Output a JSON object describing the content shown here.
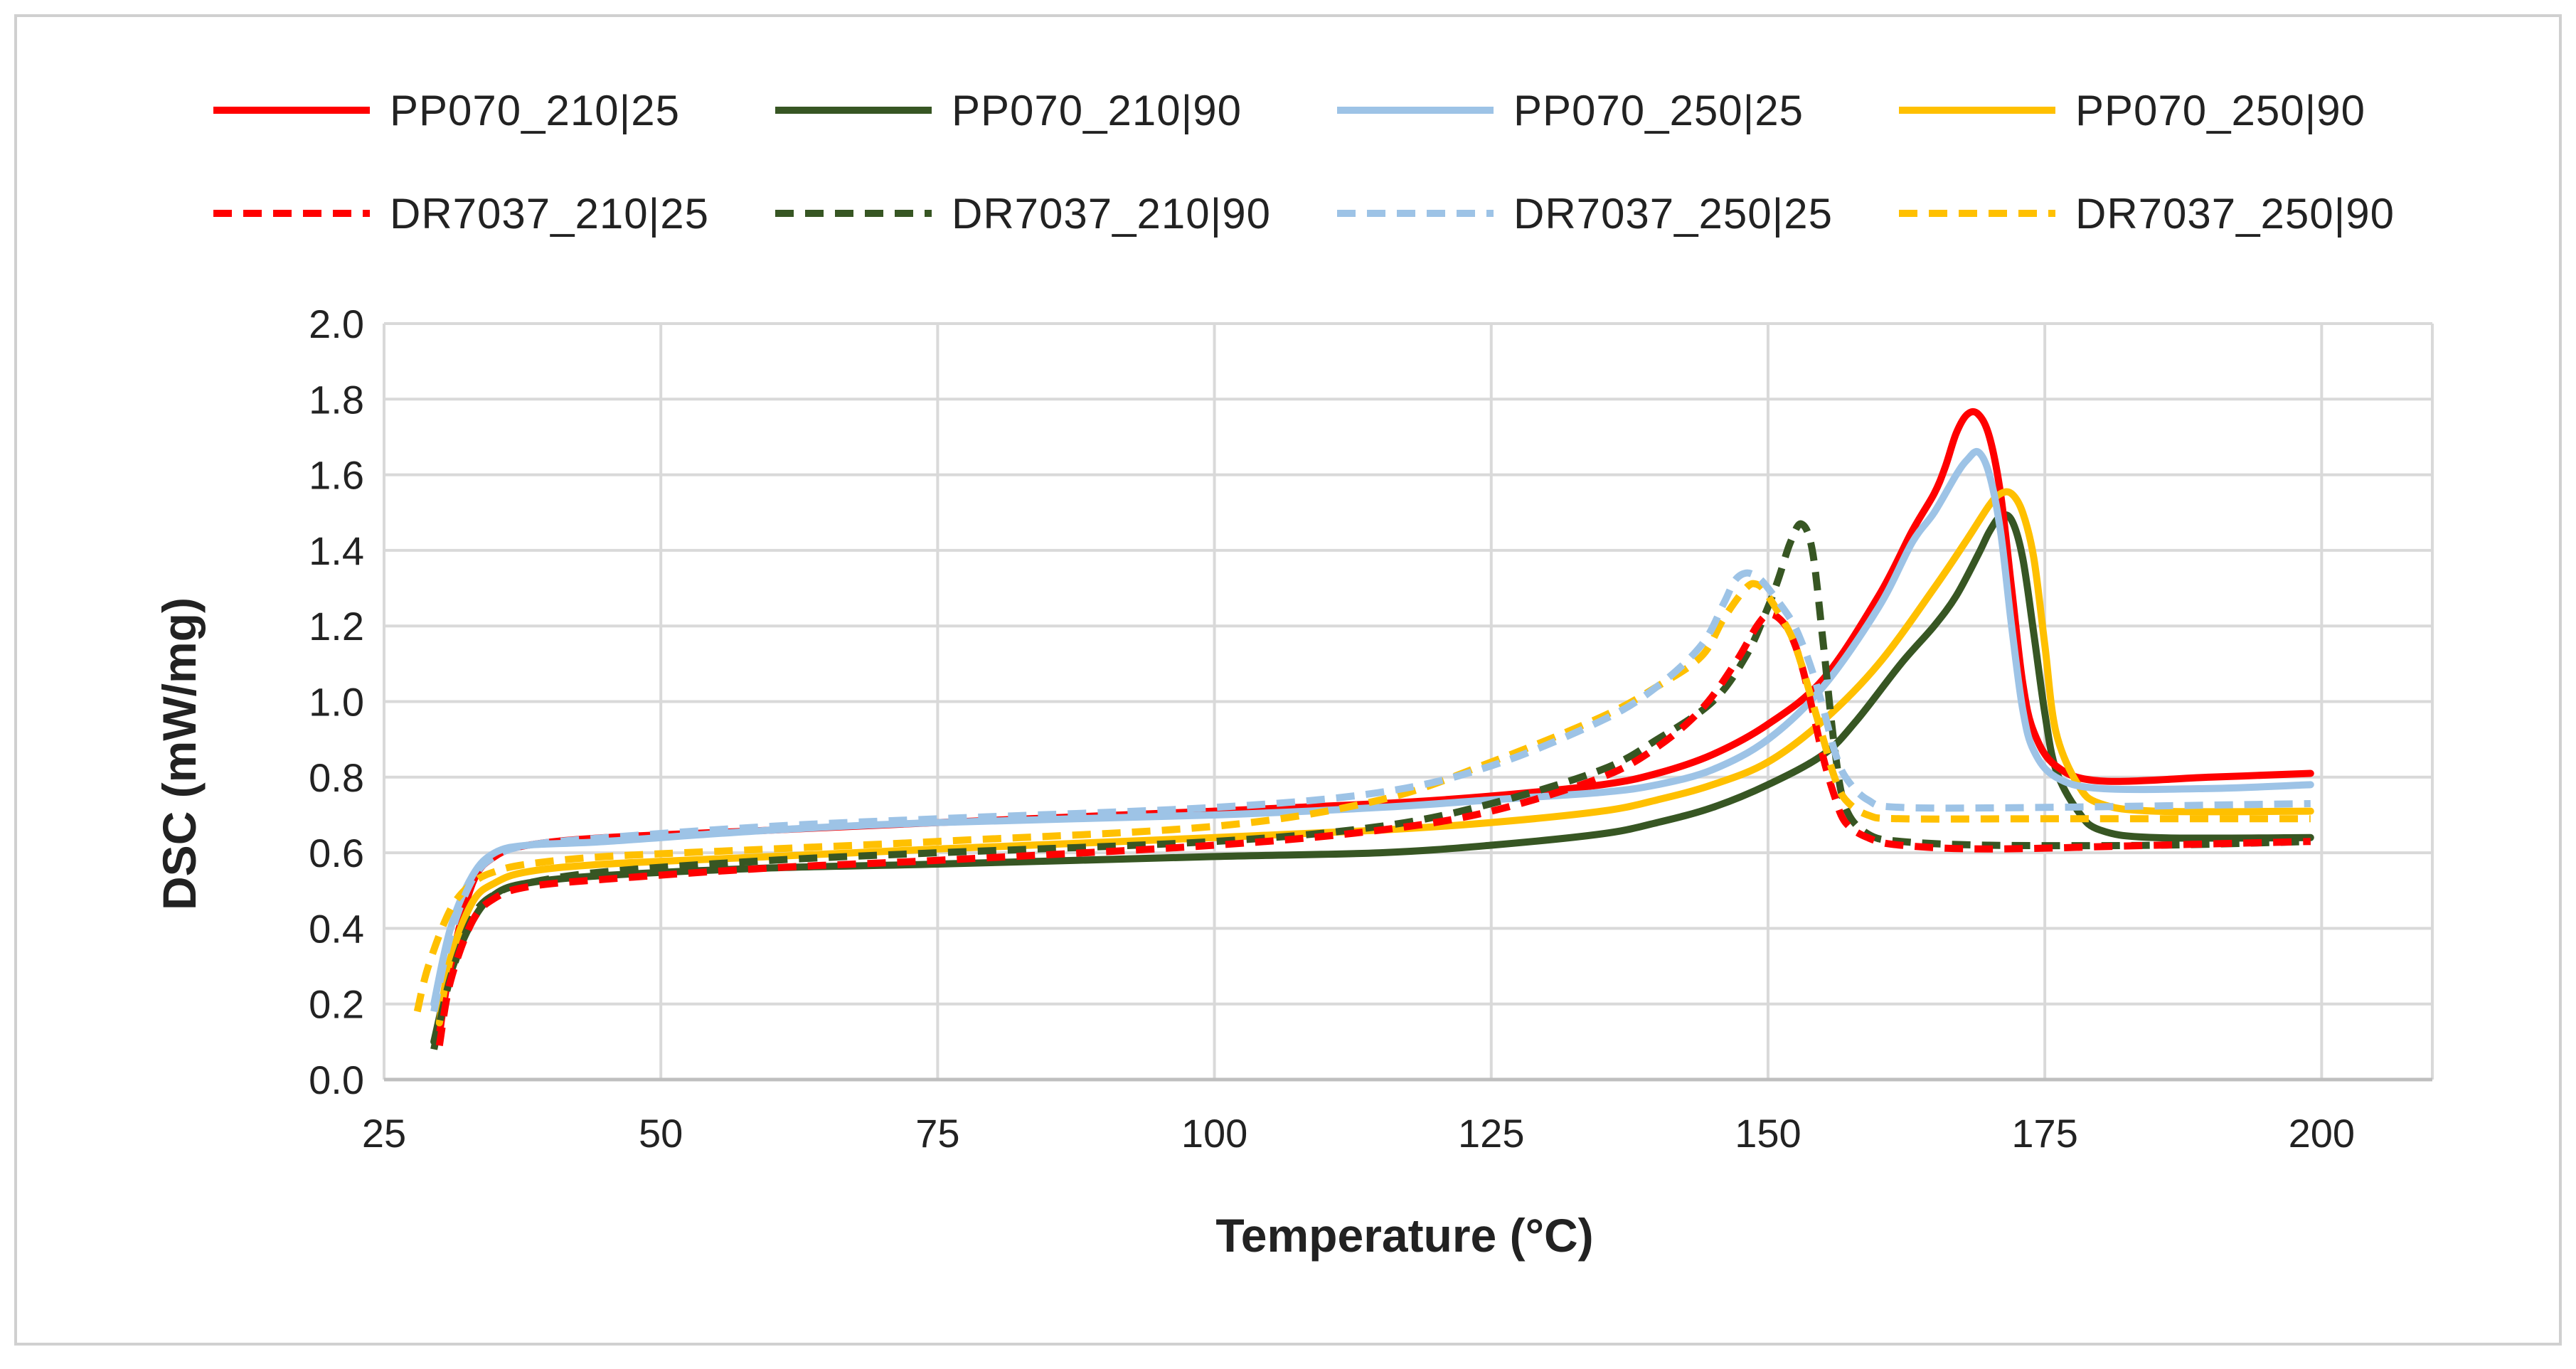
{
  "chart_data": {
    "type": "line",
    "title": "",
    "xlabel": "Temperature (°C)",
    "ylabel": "DSC  (mW/mg)",
    "xlim": [
      25,
      210
    ],
    "ylim": [
      0,
      2.0
    ],
    "x_ticks": [
      "25",
      "50",
      "75",
      "100",
      "125",
      "150",
      "175",
      "200"
    ],
    "y_ticks": [
      "0.0",
      "0.2",
      "0.4",
      "0.6",
      "0.8",
      "1.0",
      "1.2",
      "1.4",
      "1.6",
      "1.8",
      "2.0"
    ],
    "grid": true,
    "legend_position": "top",
    "series": [
      {
        "name": "PP070_210|25",
        "color": "#ff0000",
        "dash": "solid",
        "points": [
          [
            30,
            0.12
          ],
          [
            31,
            0.3
          ],
          [
            33,
            0.52
          ],
          [
            35,
            0.59
          ],
          [
            38,
            0.62
          ],
          [
            45,
            0.64
          ],
          [
            60,
            0.66
          ],
          [
            75,
            0.68
          ],
          [
            100,
            0.71
          ],
          [
            115,
            0.73
          ],
          [
            125,
            0.75
          ],
          [
            135,
            0.78
          ],
          [
            140,
            0.81
          ],
          [
            145,
            0.86
          ],
          [
            150,
            0.94
          ],
          [
            155,
            1.06
          ],
          [
            160,
            1.28
          ],
          [
            163,
            1.45
          ],
          [
            165,
            1.55
          ],
          [
            166,
            1.62
          ],
          [
            167,
            1.71
          ],
          [
            168,
            1.76
          ],
          [
            169,
            1.76
          ],
          [
            170,
            1.7
          ],
          [
            171,
            1.55
          ],
          [
            172,
            1.3
          ],
          [
            173,
            1.05
          ],
          [
            174,
            0.92
          ],
          [
            176,
            0.83
          ],
          [
            180,
            0.79
          ],
          [
            190,
            0.8
          ],
          [
            199,
            0.81
          ]
        ]
      },
      {
        "name": "PP070_210|90",
        "color": "#375623",
        "dash": "solid",
        "points": [
          [
            29.5,
            0.1
          ],
          [
            31,
            0.28
          ],
          [
            33,
            0.42
          ],
          [
            35,
            0.49
          ],
          [
            38,
            0.52
          ],
          [
            45,
            0.54
          ],
          [
            60,
            0.56
          ],
          [
            75,
            0.57
          ],
          [
            100,
            0.59
          ],
          [
            115,
            0.6
          ],
          [
            125,
            0.62
          ],
          [
            135,
            0.65
          ],
          [
            140,
            0.68
          ],
          [
            145,
            0.72
          ],
          [
            150,
            0.78
          ],
          [
            155,
            0.86
          ],
          [
            158,
            0.95
          ],
          [
            162,
            1.1
          ],
          [
            165,
            1.2
          ],
          [
            167,
            1.28
          ],
          [
            169,
            1.39
          ],
          [
            170,
            1.45
          ],
          [
            171,
            1.49
          ],
          [
            172,
            1.48
          ],
          [
            173,
            1.38
          ],
          [
            174,
            1.18
          ],
          [
            175,
            0.97
          ],
          [
            176,
            0.82
          ],
          [
            178,
            0.71
          ],
          [
            180,
            0.66
          ],
          [
            185,
            0.64
          ],
          [
            199,
            0.64
          ]
        ]
      },
      {
        "name": "PP070_250|25",
        "color": "#9dc3e6",
        "dash": "solid",
        "points": [
          [
            29.5,
            0.2
          ],
          [
            31,
            0.4
          ],
          [
            33,
            0.54
          ],
          [
            35,
            0.6
          ],
          [
            38,
            0.62
          ],
          [
            45,
            0.63
          ],
          [
            60,
            0.66
          ],
          [
            75,
            0.68
          ],
          [
            100,
            0.7
          ],
          [
            115,
            0.72
          ],
          [
            125,
            0.74
          ],
          [
            135,
            0.76
          ],
          [
            140,
            0.78
          ],
          [
            145,
            0.82
          ],
          [
            150,
            0.9
          ],
          [
            155,
            1.04
          ],
          [
            160,
            1.25
          ],
          [
            163,
            1.42
          ],
          [
            165,
            1.5
          ],
          [
            167,
            1.6
          ],
          [
            168,
            1.64
          ],
          [
            169,
            1.66
          ],
          [
            170,
            1.6
          ],
          [
            171,
            1.45
          ],
          [
            172,
            1.2
          ],
          [
            173,
            0.98
          ],
          [
            174,
            0.87
          ],
          [
            176,
            0.8
          ],
          [
            180,
            0.77
          ],
          [
            190,
            0.77
          ],
          [
            199,
            0.78
          ]
        ]
      },
      {
        "name": "PP070_250|90",
        "color": "#ffc000",
        "dash": "solid",
        "points": [
          [
            30,
            0.15
          ],
          [
            31,
            0.32
          ],
          [
            33,
            0.47
          ],
          [
            35,
            0.52
          ],
          [
            38,
            0.55
          ],
          [
            45,
            0.57
          ],
          [
            60,
            0.59
          ],
          [
            75,
            0.61
          ],
          [
            100,
            0.64
          ],
          [
            115,
            0.66
          ],
          [
            125,
            0.68
          ],
          [
            135,
            0.71
          ],
          [
            140,
            0.74
          ],
          [
            145,
            0.78
          ],
          [
            150,
            0.84
          ],
          [
            155,
            0.95
          ],
          [
            160,
            1.1
          ],
          [
            165,
            1.3
          ],
          [
            168,
            1.43
          ],
          [
            170,
            1.52
          ],
          [
            171,
            1.55
          ],
          [
            172,
            1.55
          ],
          [
            173,
            1.5
          ],
          [
            174,
            1.38
          ],
          [
            175,
            1.15
          ],
          [
            176,
            0.92
          ],
          [
            178,
            0.78
          ],
          [
            180,
            0.73
          ],
          [
            185,
            0.71
          ],
          [
            199,
            0.71
          ]
        ]
      },
      {
        "name": "DR7037_210|25",
        "color": "#ff0000",
        "dash": "dashed",
        "points": [
          [
            30,
            0.09
          ],
          [
            31,
            0.26
          ],
          [
            33,
            0.42
          ],
          [
            35,
            0.48
          ],
          [
            38,
            0.51
          ],
          [
            45,
            0.53
          ],
          [
            60,
            0.56
          ],
          [
            75,
            0.58
          ],
          [
            100,
            0.62
          ],
          [
            115,
            0.66
          ],
          [
            125,
            0.71
          ],
          [
            135,
            0.8
          ],
          [
            140,
            0.88
          ],
          [
            144,
            0.98
          ],
          [
            147,
            1.1
          ],
          [
            149,
            1.2
          ],
          [
            150,
            1.23
          ],
          [
            151,
            1.22
          ],
          [
            152,
            1.18
          ],
          [
            153,
            1.1
          ],
          [
            154,
            0.98
          ],
          [
            155,
            0.85
          ],
          [
            156,
            0.75
          ],
          [
            157,
            0.68
          ],
          [
            159,
            0.64
          ],
          [
            162,
            0.62
          ],
          [
            170,
            0.61
          ],
          [
            185,
            0.62
          ],
          [
            199,
            0.63
          ]
        ]
      },
      {
        "name": "DR7037_210|90",
        "color": "#375623",
        "dash": "dashed",
        "points": [
          [
            29.5,
            0.08
          ],
          [
            31,
            0.27
          ],
          [
            33,
            0.43
          ],
          [
            35,
            0.49
          ],
          [
            38,
            0.52
          ],
          [
            45,
            0.55
          ],
          [
            60,
            0.58
          ],
          [
            75,
            0.6
          ],
          [
            100,
            0.63
          ],
          [
            115,
            0.67
          ],
          [
            125,
            0.73
          ],
          [
            135,
            0.82
          ],
          [
            140,
            0.9
          ],
          [
            145,
            1.0
          ],
          [
            148,
            1.12
          ],
          [
            150,
            1.25
          ],
          [
            151,
            1.33
          ],
          [
            152,
            1.42
          ],
          [
            153,
            1.47
          ],
          [
            154,
            1.4
          ],
          [
            155,
            1.15
          ],
          [
            156,
            0.88
          ],
          [
            157,
            0.72
          ],
          [
            159,
            0.65
          ],
          [
            162,
            0.63
          ],
          [
            170,
            0.62
          ],
          [
            185,
            0.62
          ],
          [
            199,
            0.63
          ]
        ]
      },
      {
        "name": "DR7037_250|25",
        "color": "#9dc3e6",
        "dash": "dashed",
        "points": [
          [
            29.5,
            0.18
          ],
          [
            31,
            0.38
          ],
          [
            33,
            0.53
          ],
          [
            35,
            0.59
          ],
          [
            38,
            0.62
          ],
          [
            45,
            0.64
          ],
          [
            60,
            0.67
          ],
          [
            75,
            0.69
          ],
          [
            100,
            0.72
          ],
          [
            115,
            0.76
          ],
          [
            125,
            0.83
          ],
          [
            135,
            0.95
          ],
          [
            140,
            1.04
          ],
          [
            144,
            1.15
          ],
          [
            146,
            1.26
          ],
          [
            147,
            1.32
          ],
          [
            148,
            1.34
          ],
          [
            149,
            1.33
          ],
          [
            150,
            1.3
          ],
          [
            152,
            1.22
          ],
          [
            153,
            1.16
          ],
          [
            154,
            1.08
          ],
          [
            155,
            0.98
          ],
          [
            156,
            0.87
          ],
          [
            157,
            0.8
          ],
          [
            159,
            0.74
          ],
          [
            162,
            0.72
          ],
          [
            175,
            0.72
          ],
          [
            199,
            0.73
          ]
        ]
      },
      {
        "name": "DR7037_250|90",
        "color": "#ffc000",
        "dash": "dashed",
        "points": [
          [
            28,
            0.18
          ],
          [
            29,
            0.3
          ],
          [
            31,
            0.45
          ],
          [
            33,
            0.52
          ],
          [
            35,
            0.55
          ],
          [
            38,
            0.57
          ],
          [
            45,
            0.59
          ],
          [
            60,
            0.61
          ],
          [
            75,
            0.63
          ],
          [
            100,
            0.67
          ],
          [
            115,
            0.74
          ],
          [
            125,
            0.84
          ],
          [
            135,
            0.96
          ],
          [
            140,
            1.04
          ],
          [
            144,
            1.12
          ],
          [
            146,
            1.22
          ],
          [
            148,
            1.3
          ],
          [
            149,
            1.31
          ],
          [
            150,
            1.28
          ],
          [
            152,
            1.18
          ],
          [
            153,
            1.1
          ],
          [
            154,
            1.0
          ],
          [
            155,
            0.9
          ],
          [
            156,
            0.8
          ],
          [
            157,
            0.74
          ],
          [
            159,
            0.7
          ],
          [
            162,
            0.69
          ],
          [
            175,
            0.69
          ],
          [
            199,
            0.69
          ]
        ]
      }
    ]
  }
}
